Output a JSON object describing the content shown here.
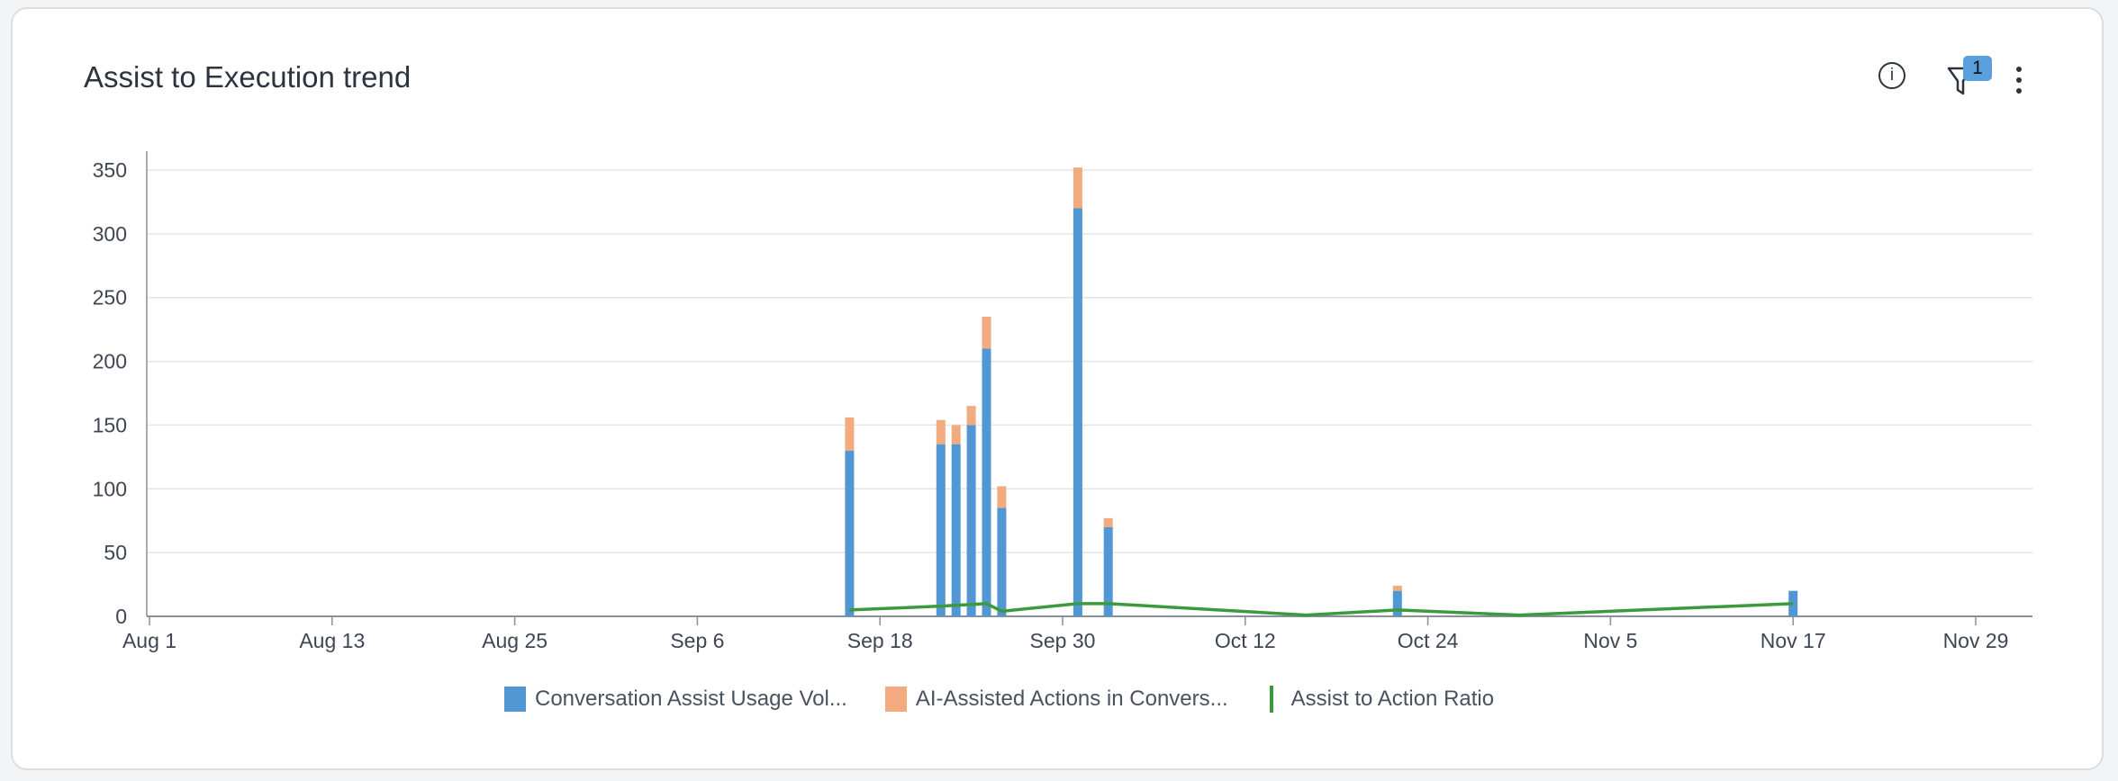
{
  "header": {
    "title": "Assist to Execution trend",
    "filter_count": "1",
    "info_icon": "info-icon",
    "filter_icon": "filter-icon",
    "more_icon": "more-vertical-icon"
  },
  "colors": {
    "usage": "#5097d3",
    "actions": "#f2aa7f",
    "ratio": "#3c9a3c",
    "grid": "#e4e5e8",
    "axis": "#8a8f98",
    "tick_text": "#3f4652"
  },
  "chart_data": {
    "type": "bar",
    "stacked": true,
    "x_ticks": [
      "Aug 1",
      "Aug 13",
      "Aug 25",
      "Sep 6",
      "Sep 18",
      "Sep 30",
      "Oct 12",
      "Oct 24",
      "Nov 5",
      "Nov 17",
      "Nov 29"
    ],
    "y_ticks": [
      0,
      50,
      100,
      150,
      200,
      250,
      300,
      350
    ],
    "ylim": [
      0,
      350
    ],
    "grid": true,
    "legend_position": "bottom",
    "series": [
      {
        "name": "Conversation Assist Usage Vol...",
        "type": "bar",
        "points": [
          {
            "date": "Sep 16",
            "value": 130
          },
          {
            "date": "Sep 22",
            "value": 135
          },
          {
            "date": "Sep 23",
            "value": 135
          },
          {
            "date": "Sep 24",
            "value": 150
          },
          {
            "date": "Sep 25",
            "value": 210
          },
          {
            "date": "Sep 26",
            "value": 85
          },
          {
            "date": "Oct 1",
            "value": 320
          },
          {
            "date": "Oct 3",
            "value": 70
          },
          {
            "date": "Oct 22",
            "value": 20
          },
          {
            "date": "Nov 17",
            "value": 20
          }
        ]
      },
      {
        "name": "AI-Assisted Actions in Convers...",
        "type": "bar",
        "points": [
          {
            "date": "Sep 16",
            "value": 26
          },
          {
            "date": "Sep 22",
            "value": 19
          },
          {
            "date": "Sep 23",
            "value": 15
          },
          {
            "date": "Sep 24",
            "value": 15
          },
          {
            "date": "Sep 25",
            "value": 25
          },
          {
            "date": "Sep 26",
            "value": 17
          },
          {
            "date": "Oct 1",
            "value": 32
          },
          {
            "date": "Oct 3",
            "value": 7
          },
          {
            "date": "Oct 22",
            "value": 4
          },
          {
            "date": "Nov 17",
            "value": 0
          }
        ]
      },
      {
        "name": "Assist to Action Ratio",
        "type": "line",
        "points": [
          {
            "date": "Sep 16",
            "value": 5
          },
          {
            "date": "Sep 22",
            "value": 8
          },
          {
            "date": "Sep 25",
            "value": 10
          },
          {
            "date": "Sep 26",
            "value": 4
          },
          {
            "date": "Oct 1",
            "value": 10
          },
          {
            "date": "Oct 3",
            "value": 10
          },
          {
            "date": "Oct 16",
            "value": 1
          },
          {
            "date": "Oct 22",
            "value": 5
          },
          {
            "date": "Oct 30",
            "value": 1
          },
          {
            "date": "Nov 17",
            "value": 10
          }
        ]
      }
    ]
  }
}
